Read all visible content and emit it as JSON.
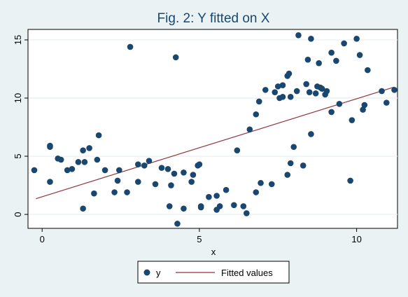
{
  "chart_data": {
    "type": "scatter",
    "title": "Fig. 2: Y fitted on X",
    "xlabel": "x",
    "ylabel": "",
    "xlim": [
      -0.45,
      11.3
    ],
    "ylim": [
      -1.2,
      15.9
    ],
    "x_ticks": [
      0,
      5,
      10
    ],
    "y_ticks": [
      0,
      5,
      10,
      15
    ],
    "grid": true,
    "legend_position": "bottom-center",
    "colors": {
      "background": "#eaf2f3",
      "plot_background": "#ffffff",
      "grid": "#eaf2f3",
      "markers": "#1a476f",
      "fitted_line": "#90353b",
      "title": "#1a476f"
    },
    "series": [
      {
        "name": "y",
        "type": "scatter",
        "points": [
          [
            -0.25,
            3.8
          ],
          [
            0.25,
            2.8
          ],
          [
            0.25,
            5.9
          ],
          [
            0.25,
            5.8
          ],
          [
            0.5,
            4.8
          ],
          [
            0.6,
            4.7
          ],
          [
            0.8,
            3.8
          ],
          [
            0.95,
            3.9
          ],
          [
            1.15,
            4.5
          ],
          [
            1.3,
            5.5
          ],
          [
            1.3,
            0.5
          ],
          [
            1.35,
            4.5
          ],
          [
            1.5,
            5.7
          ],
          [
            1.65,
            1.8
          ],
          [
            1.75,
            4.7
          ],
          [
            1.8,
            6.8
          ],
          [
            2.0,
            3.8
          ],
          [
            2.3,
            1.9
          ],
          [
            2.4,
            2.9
          ],
          [
            2.45,
            3.8
          ],
          [
            2.7,
            1.9
          ],
          [
            2.8,
            14.4
          ],
          [
            3.05,
            4.3
          ],
          [
            3.05,
            2.8
          ],
          [
            3.25,
            4.2
          ],
          [
            3.4,
            4.6
          ],
          [
            3.6,
            2.6
          ],
          [
            3.8,
            4.0
          ],
          [
            4.0,
            3.9
          ],
          [
            4.05,
            0.7
          ],
          [
            4.1,
            2.5
          ],
          [
            4.2,
            3.5
          ],
          [
            4.25,
            13.5
          ],
          [
            4.3,
            -0.8
          ],
          [
            4.5,
            0.5
          ],
          [
            4.5,
            3.6
          ],
          [
            4.75,
            2.8
          ],
          [
            4.8,
            3.4
          ],
          [
            4.95,
            4.2
          ],
          [
            5.0,
            4.3
          ],
          [
            5.05,
            0.7
          ],
          [
            5.05,
            0.6
          ],
          [
            5.3,
            1.5
          ],
          [
            5.55,
            1.6
          ],
          [
            5.55,
            0.4
          ],
          [
            5.65,
            0.7
          ],
          [
            5.85,
            2.1
          ],
          [
            6.1,
            0.8
          ],
          [
            6.2,
            5.5
          ],
          [
            6.4,
            0.7
          ],
          [
            6.5,
            0.1
          ],
          [
            6.6,
            7.3
          ],
          [
            6.8,
            8.6
          ],
          [
            6.8,
            1.9
          ],
          [
            6.9,
            9.7
          ],
          [
            6.95,
            2.7
          ],
          [
            7.1,
            10.7
          ],
          [
            7.3,
            2.6
          ],
          [
            7.4,
            10.5
          ],
          [
            7.5,
            11.0
          ],
          [
            7.55,
            10.0
          ],
          [
            7.65,
            10.1
          ],
          [
            7.65,
            11.1
          ],
          [
            7.8,
            11.9
          ],
          [
            7.8,
            3.4
          ],
          [
            7.85,
            12.1
          ],
          [
            7.9,
            4.4
          ],
          [
            7.9,
            10.1
          ],
          [
            8.0,
            5.8
          ],
          [
            8.1,
            10.6
          ],
          [
            8.15,
            15.4
          ],
          [
            8.3,
            4.2
          ],
          [
            8.4,
            11.2
          ],
          [
            8.45,
            13.3
          ],
          [
            8.5,
            10.5
          ],
          [
            8.55,
            15.1
          ],
          [
            8.55,
            6.9
          ],
          [
            8.7,
            10.4
          ],
          [
            8.75,
            11.0
          ],
          [
            8.8,
            13.0
          ],
          [
            8.85,
            10.9
          ],
          [
            8.9,
            10.8
          ],
          [
            9.0,
            10.3
          ],
          [
            9.05,
            10.6
          ],
          [
            9.2,
            13.9
          ],
          [
            9.2,
            8.8
          ],
          [
            9.35,
            13.2
          ],
          [
            9.45,
            9.5
          ],
          [
            9.6,
            14.7
          ],
          [
            9.8,
            2.9
          ],
          [
            9.85,
            8.1
          ],
          [
            10.0,
            15.1
          ],
          [
            10.1,
            13.7
          ],
          [
            10.2,
            9.0
          ],
          [
            10.25,
            9.4
          ],
          [
            10.35,
            12.4
          ],
          [
            10.8,
            10.6
          ],
          [
            10.95,
            9.6
          ],
          [
            11.2,
            10.7
          ]
        ]
      },
      {
        "name": "Fitted values",
        "type": "line",
        "points": [
          [
            -0.2,
            1.35
          ],
          [
            11.2,
            10.95
          ]
        ]
      }
    ]
  }
}
